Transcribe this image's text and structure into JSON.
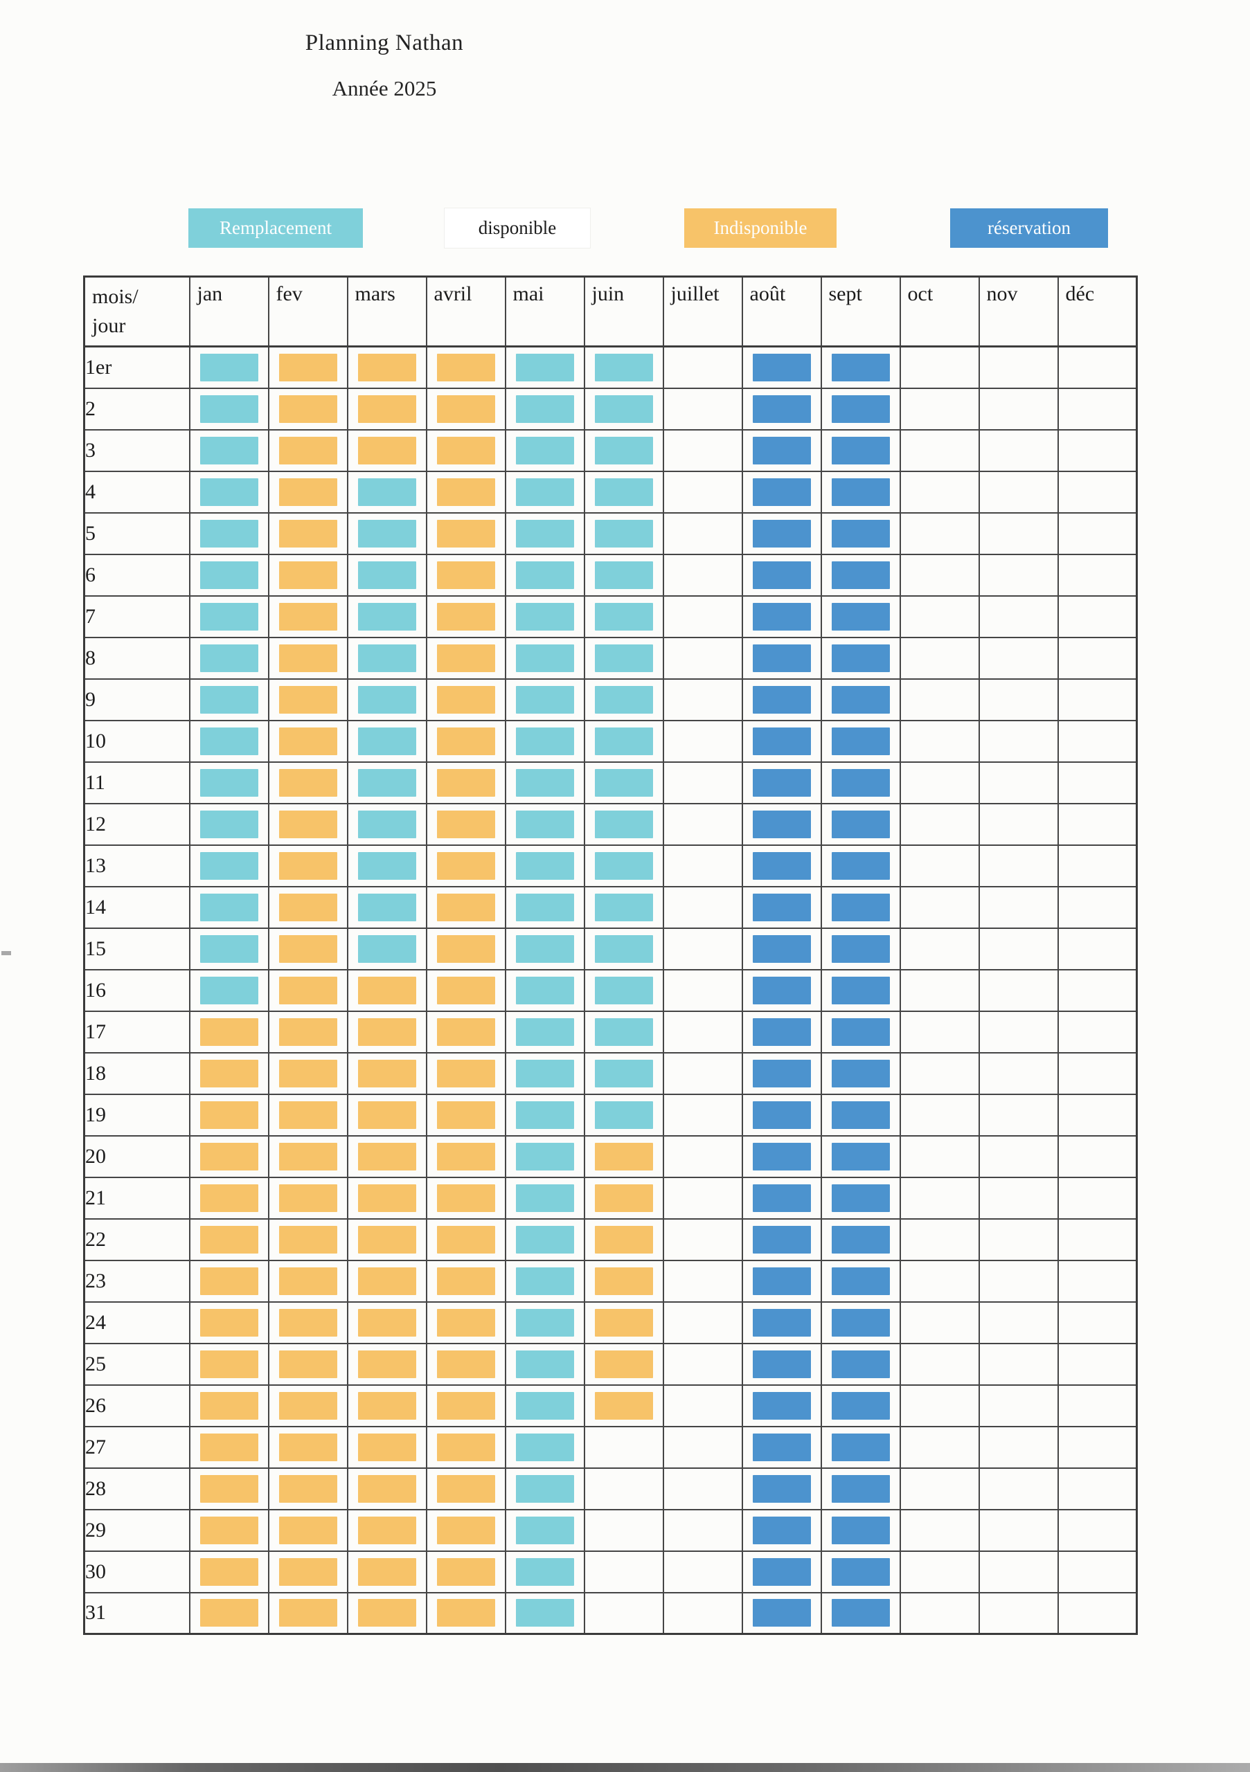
{
  "page": {
    "title": "Planning Nathan",
    "subtitle": "Année 2025"
  },
  "colors": {
    "R": "#7FD0DA",
    "I": "#F7C369",
    "V": "#4C93CE",
    "D": ""
  },
  "statuses": {
    "R": "remplacement",
    "I": "indisponible",
    "V": "réservation",
    "D": "disponible"
  },
  "legend": [
    {
      "label": "Remplacement",
      "status": "R"
    },
    {
      "label": "disponible",
      "status": "D"
    },
    {
      "label": "Indisponible",
      "status": "I"
    },
    {
      "label": "réservation",
      "status": "V"
    }
  ],
  "table": {
    "corner_header": [
      "mois/",
      "jour"
    ],
    "day_labels": [
      "1er",
      "2",
      "3",
      "4",
      "5",
      "6",
      "7",
      "8",
      "9",
      "10",
      "11",
      "12",
      "13",
      "14",
      "15",
      "16",
      "17",
      "18",
      "19",
      "20",
      "21",
      "22",
      "23",
      "24",
      "25",
      "26",
      "27",
      "28",
      "29",
      "30",
      "31"
    ],
    "months": [
      {
        "label": "jan",
        "cells": "RRRRRRRRRRRRRRRRIIIIIIIIIIIIIII"
      },
      {
        "label": "fev",
        "cells": "IIIIIIIIIIIIIIIIIIIIIIIIIIIIIII"
      },
      {
        "label": "mars",
        "cells": "IIIRRRRRRRRRRRRIIIIIIIIIIIIIIII"
      },
      {
        "label": "avril",
        "cells": "IIIIIIIIIIIIIIIIIIIIIIIIIIIIIII"
      },
      {
        "label": "mai",
        "cells": "RRRRRRRRRRRRRRRRRRRRRRRRRRRRRRR"
      },
      {
        "label": "juin",
        "cells": "RRRRRRRRRRRRRRRRRRRIIIIIIIDDDDD"
      },
      {
        "label": "juillet",
        "cells": "DDDDDDDDDDDDDDDDDDDDDDDDDDDDDDD"
      },
      {
        "label": "août",
        "cells": "VVVVVVVVVVVVVVVVVVVVVVVVVVVVVVV"
      },
      {
        "label": "sept",
        "cells": "VVVVVVVVVVVVVVVVVVVVVVVVVVVVVVV"
      },
      {
        "label": "oct",
        "cells": "DDDDDDDDDDDDDDDDDDDDDDDDDDDDDDD"
      },
      {
        "label": "nov",
        "cells": "DDDDDDDDDDDDDDDDDDDDDDDDDDDDDDD"
      },
      {
        "label": "déc",
        "cells": "DDDDDDDDDDDDDDDDDDDDDDDDDDDDDDD"
      }
    ]
  }
}
